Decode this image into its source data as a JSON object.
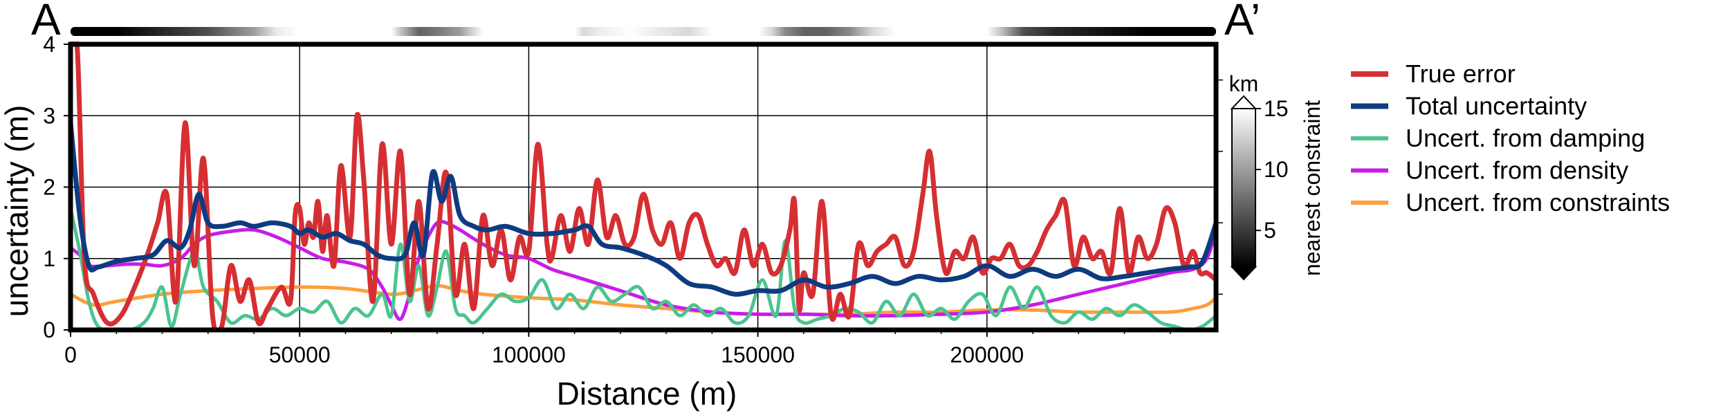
{
  "chart_data": {
    "type": "line",
    "start_label": "A",
    "end_label": "A’",
    "xlabel": "Distance (m)",
    "ylabel": "uncertainty (m)",
    "xlim": [
      0,
      250000
    ],
    "ylim": [
      0,
      4
    ],
    "xticks": [
      0,
      50000,
      100000,
      150000,
      200000
    ],
    "yticks": [
      0,
      1,
      2,
      3,
      4
    ],
    "grid": true,
    "legend_position": "right",
    "colorbar": {
      "label": "nearest constraint",
      "unit": "km",
      "ticks": [
        5,
        10,
        15
      ],
      "range": [
        2,
        15
      ]
    },
    "series": [
      {
        "name": "True error",
        "color": "#d62f33",
        "width": 7,
        "x": [
          0,
          1500,
          3000,
          5000,
          8000,
          11000,
          14000,
          17000,
          19000,
          21000,
          23000,
          25000,
          27000,
          29000,
          31000,
          33000,
          35000,
          37000,
          39000,
          41000,
          43000,
          46000,
          48000,
          49000,
          50000,
          51000,
          52000,
          53000,
          54000,
          55000,
          56000,
          57500,
          59000,
          61000,
          62500,
          64000,
          66000,
          68000,
          70000,
          72000,
          74000,
          76000,
          78000,
          80000,
          82000,
          84000,
          86000,
          88000,
          90000,
          92000,
          94000,
          96000,
          98000,
          100000,
          102000,
          104000,
          105000,
          107000,
          109000,
          111000,
          113000,
          115000,
          117000,
          119000,
          121000,
          123000,
          125000,
          127000,
          129000,
          131000,
          133000,
          135000,
          137000,
          139000,
          141000,
          143000,
          145000,
          147000,
          149000,
          151000,
          153000,
          155000,
          157000,
          158000,
          159000,
          160000,
          162000,
          164000,
          166000,
          168000,
          170000,
          172000,
          174000,
          176000,
          178000,
          180000,
          182000,
          184000,
          186000,
          187500,
          189000,
          191000,
          193000,
          195000,
          197000,
          199000,
          201000,
          203000,
          205000,
          207000,
          209000,
          211000,
          213000,
          215000,
          217000,
          219000,
          221000,
          223000,
          225000,
          227000,
          229000,
          231000,
          233000,
          235000,
          237000,
          239000,
          241000,
          243000,
          245000,
          246500,
          248000,
          250000
        ],
        "y": [
          4.0,
          3.9,
          1.0,
          0.5,
          0.1,
          0.2,
          0.6,
          1.1,
          1.5,
          1.9,
          0.4,
          2.9,
          0.9,
          2.4,
          0.2,
          0.05,
          0.9,
          0.4,
          0.7,
          0.1,
          0.3,
          0.6,
          0.4,
          1.6,
          1.7,
          1.2,
          1.5,
          1.3,
          1.8,
          1.1,
          1.6,
          0.9,
          2.3,
          1.3,
          3.0,
          2.1,
          0.4,
          2.6,
          1.2,
          2.5,
          0.5,
          1.8,
          0.3,
          1.2,
          2.2,
          0.5,
          1.2,
          0.3,
          1.6,
          0.9,
          1.4,
          0.7,
          1.3,
          1.1,
          2.6,
          1.2,
          1.0,
          1.6,
          1.1,
          1.7,
          1.2,
          2.1,
          1.3,
          1.6,
          1.2,
          1.3,
          1.9,
          1.4,
          1.2,
          1.5,
          1.0,
          1.5,
          1.6,
          1.2,
          0.9,
          1.0,
          0.8,
          1.4,
          0.9,
          1.2,
          0.8,
          0.9,
          1.4,
          1.8,
          0.3,
          0.8,
          0.5,
          1.8,
          0.2,
          0.5,
          0.2,
          1.2,
          0.9,
          1.1,
          1.2,
          1.3,
          0.9,
          1.1,
          1.9,
          2.5,
          1.6,
          0.8,
          1.1,
          1.0,
          1.3,
          0.8,
          1.0,
          1.0,
          1.2,
          0.9,
          0.9,
          1.1,
          1.4,
          1.6,
          1.8,
          0.9,
          1.3,
          1.0,
          1.1,
          0.8,
          1.7,
          0.8,
          1.3,
          1.0,
          1.2,
          1.7,
          1.5,
          0.9,
          1.1,
          0.8,
          0.8,
          0.7
        ]
      },
      {
        "name": "Total uncertainty",
        "color": "#0e3b80",
        "width": 7,
        "x": [
          0,
          2000,
          4000,
          6000,
          10000,
          14000,
          18000,
          21000,
          24000,
          26000,
          28000,
          30000,
          33000,
          37000,
          40000,
          44000,
          48000,
          50000,
          52000,
          55000,
          58000,
          61000,
          64000,
          67000,
          70000,
          73000,
          75000,
          77000,
          79000,
          81000,
          83000,
          85000,
          88000,
          91000,
          95000,
          100000,
          105000,
          110000,
          113000,
          116000,
          120000,
          125000,
          130000,
          135000,
          140000,
          145000,
          150000,
          155000,
          160000,
          165000,
          170000,
          175000,
          180000,
          185000,
          190000,
          195000,
          200000,
          205000,
          210000,
          215000,
          220000,
          225000,
          230000,
          235000,
          240000,
          244000,
          247000,
          250000
        ],
        "y": [
          2.9,
          1.6,
          0.9,
          0.88,
          0.96,
          1.0,
          1.05,
          1.25,
          1.15,
          1.4,
          1.9,
          1.5,
          1.45,
          1.5,
          1.45,
          1.5,
          1.45,
          1.35,
          1.4,
          1.3,
          1.35,
          1.25,
          1.2,
          1.05,
          1.0,
          1.05,
          1.5,
          1.05,
          2.2,
          1.8,
          2.15,
          1.6,
          1.45,
          1.4,
          1.45,
          1.35,
          1.35,
          1.4,
          1.45,
          1.2,
          1.15,
          1.05,
          0.9,
          0.65,
          0.6,
          0.5,
          0.55,
          0.55,
          0.7,
          0.6,
          0.65,
          0.75,
          0.65,
          0.75,
          0.7,
          0.75,
          0.9,
          0.75,
          0.85,
          0.75,
          0.85,
          0.72,
          0.75,
          0.8,
          0.85,
          0.88,
          0.95,
          1.5
        ]
      },
      {
        "name": "Uncert. from damping",
        "color": "#4bc48f",
        "width": 5,
        "x": [
          0,
          2000,
          4000,
          6000,
          9000,
          13000,
          16000,
          18000,
          20000,
          22000,
          24000,
          27000,
          29000,
          32000,
          35000,
          38000,
          41000,
          44000,
          47000,
          50000,
          53000,
          56000,
          59000,
          62000,
          65000,
          68000,
          70000,
          72000,
          74000,
          76000,
          78000,
          80000,
          82000,
          84000,
          86000,
          88000,
          91000,
          94000,
          97000,
          100000,
          103000,
          106000,
          109000,
          112000,
          115000,
          118000,
          121000,
          124000,
          127000,
          130000,
          133000,
          136000,
          139000,
          142000,
          145000,
          148000,
          151000,
          154000,
          156000,
          158000,
          160000,
          163000,
          166000,
          169000,
          172000,
          175000,
          178000,
          181000,
          184000,
          187000,
          190000,
          193000,
          196000,
          199000,
          202000,
          205000,
          208000,
          211000,
          214000,
          217000,
          220000,
          223000,
          226000,
          229000,
          232000,
          235000,
          238000,
          241000,
          244000,
          247000,
          250000
        ],
        "y": [
          1.7,
          1.1,
          0.4,
          0.05,
          0.0,
          0.0,
          0.1,
          0.3,
          0.6,
          0.05,
          0.5,
          1.1,
          0.6,
          0.4,
          0.1,
          0.2,
          0.15,
          0.3,
          0.2,
          0.3,
          0.25,
          0.4,
          0.1,
          0.3,
          0.2,
          0.5,
          0.2,
          1.2,
          0.4,
          0.9,
          0.2,
          0.6,
          1.1,
          0.3,
          0.2,
          0.1,
          0.3,
          0.5,
          0.4,
          0.45,
          0.7,
          0.3,
          0.5,
          0.3,
          0.6,
          0.4,
          0.5,
          0.6,
          0.3,
          0.4,
          0.2,
          0.35,
          0.2,
          0.3,
          0.1,
          0.2,
          0.7,
          0.2,
          1.25,
          0.3,
          0.1,
          0.15,
          0.2,
          0.3,
          0.25,
          0.1,
          0.4,
          0.2,
          0.5,
          0.2,
          0.3,
          0.15,
          0.4,
          0.5,
          0.2,
          0.6,
          0.3,
          0.6,
          0.2,
          0.1,
          0.25,
          0.15,
          0.3,
          0.2,
          0.35,
          0.25,
          0.1,
          0.05,
          0.0,
          0.05,
          0.2
        ]
      },
      {
        "name": "Uncert. from density",
        "color": "#c81ce8",
        "width": 5,
        "x": [
          0,
          2000,
          4000,
          8000,
          12000,
          16000,
          20000,
          24000,
          27000,
          30000,
          35000,
          40000,
          45000,
          50000,
          55000,
          60000,
          65000,
          68000,
          70000,
          72000,
          74000,
          76000,
          78000,
          80000,
          82000,
          85000,
          90000,
          95000,
          100000,
          105000,
          110000,
          120000,
          130000,
          140000,
          150000,
          160000,
          170000,
          180000,
          190000,
          200000,
          210000,
          220000,
          230000,
          240000,
          245000,
          248000,
          250000
        ],
        "y": [
          1.15,
          1.05,
          0.9,
          0.9,
          0.92,
          0.92,
          0.9,
          1.0,
          1.2,
          1.32,
          1.38,
          1.4,
          1.3,
          1.15,
          1.0,
          0.95,
          0.85,
          0.6,
          0.35,
          0.15,
          0.5,
          1.0,
          1.3,
          1.5,
          1.5,
          1.4,
          1.2,
          1.05,
          1.0,
          0.85,
          0.75,
          0.55,
          0.35,
          0.25,
          0.22,
          0.22,
          0.2,
          0.2,
          0.22,
          0.25,
          0.35,
          0.5,
          0.65,
          0.8,
          0.85,
          1.0,
          1.4
        ]
      },
      {
        "name": "Uncert. from constraints",
        "color": "#ff9e3a",
        "width": 5,
        "x": [
          0,
          5000,
          10000,
          20000,
          30000,
          40000,
          50000,
          60000,
          70000,
          75000,
          80000,
          85000,
          90000,
          100000,
          110000,
          120000,
          130000,
          140000,
          150000,
          160000,
          170000,
          180000,
          190000,
          200000,
          210000,
          220000,
          230000,
          240000,
          245000,
          248000,
          250000
        ],
        "y": [
          0.5,
          0.35,
          0.4,
          0.5,
          0.55,
          0.58,
          0.6,
          0.58,
          0.5,
          0.55,
          0.62,
          0.55,
          0.5,
          0.45,
          0.42,
          0.35,
          0.3,
          0.25,
          0.22,
          0.22,
          0.22,
          0.25,
          0.25,
          0.28,
          0.28,
          0.25,
          0.25,
          0.25,
          0.3,
          0.35,
          0.45
        ]
      }
    ],
    "proximity_bar": {
      "x": [
        0,
        10000,
        20000,
        30000,
        40000,
        45000,
        50000,
        60000,
        70000,
        72000,
        76000,
        80000,
        85000,
        90000,
        100000,
        110000,
        112000,
        115000,
        122000,
        128000,
        135000,
        140000,
        145000,
        150000,
        153000,
        156000,
        160000,
        165000,
        170000,
        175000,
        180000,
        190000,
        200000,
        203000,
        208000,
        215000,
        225000,
        235000,
        245000,
        250000
      ],
      "km": [
        2,
        2,
        4,
        6,
        10,
        14,
        15,
        15,
        15,
        12,
        7,
        8,
        10,
        15,
        15,
        15,
        13,
        14,
        15,
        14,
        13,
        15,
        15,
        15,
        13,
        9,
        7,
        7,
        9,
        13,
        15,
        15,
        15,
        12,
        6,
        4,
        3,
        2,
        2,
        2
      ]
    }
  }
}
